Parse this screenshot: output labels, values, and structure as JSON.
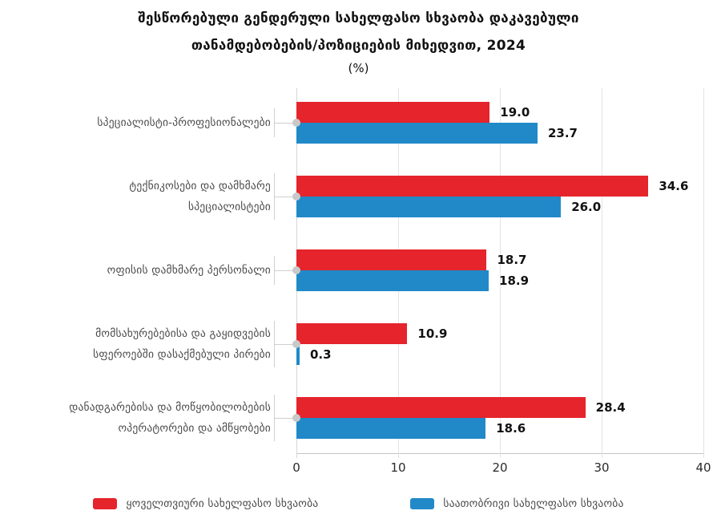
{
  "title": {
    "line1": "შესწორებული გენდერული სახელფასო სხვაობა დაკავებული",
    "line2": "თანამდებობების/პოზიციების მიხედვით, 2024",
    "unit": "(%)"
  },
  "chart_data": {
    "type": "bar",
    "orientation": "horizontal",
    "title": "შესწორებული გენდერული სახელფასო სხვაობა დაკავებული თანამდებობების/პოზიციების მიხედვით, 2024",
    "subtitle": "(%)",
    "categories": [
      "სპეციალისტი-პროფესიონალები",
      "ტექნიკოსები და დამხმარე სპეციალისტები",
      "ოფისის დამხმარე პერსონალი",
      "მომსახურებებისა და გაყიდვების სფეროებში დასაქმებული პირები",
      "დანადგარებისა და მოწყობილობების ოპერატორები და ამწყობები"
    ],
    "category_lines": [
      [
        "სპეციალისტი-პროფესიონალები"
      ],
      [
        "ტექნიკოსები და დამხმარე",
        "სპეციალისტები"
      ],
      [
        "ოფისის დამხმარე პერსონალი"
      ],
      [
        "მომსახურებებისა და გაყიდვების",
        "სფეროებში დასაქმებული პირები"
      ],
      [
        "დანადგარებისა და მოწყობილობების",
        "ოპერატორები და ამწყობები"
      ]
    ],
    "series": [
      {
        "name": "ყოველთვიური სახელფასო სხვაობა",
        "color": "#e5242b",
        "values": [
          19.0,
          34.6,
          18.7,
          10.9,
          28.4
        ],
        "labels": [
          "19.0",
          "34.6",
          "18.7",
          "10.9",
          "28.4"
        ]
      },
      {
        "name": "საათობრივი სახელფასო სხვაობა",
        "color": "#2189c8",
        "values": [
          23.7,
          26.0,
          18.9,
          0.3,
          18.6
        ],
        "labels": [
          "23.7",
          "26.0",
          "18.9",
          "0.3",
          "18.6"
        ]
      }
    ],
    "xlabel": "",
    "ylabel": "",
    "xlim": [
      0,
      40
    ],
    "x_ticks": [
      "0",
      "10",
      "20",
      "30",
      "40"
    ],
    "grid": "vertical-light",
    "legend_position": "bottom"
  },
  "colors": {
    "monthly_red": "#e5242b",
    "hourly_blue": "#2189c8",
    "gridline": "#e4e4e4",
    "axis": "#c4c4c4",
    "connector": "#cfcfcf",
    "dot": "#c9c9c9"
  }
}
